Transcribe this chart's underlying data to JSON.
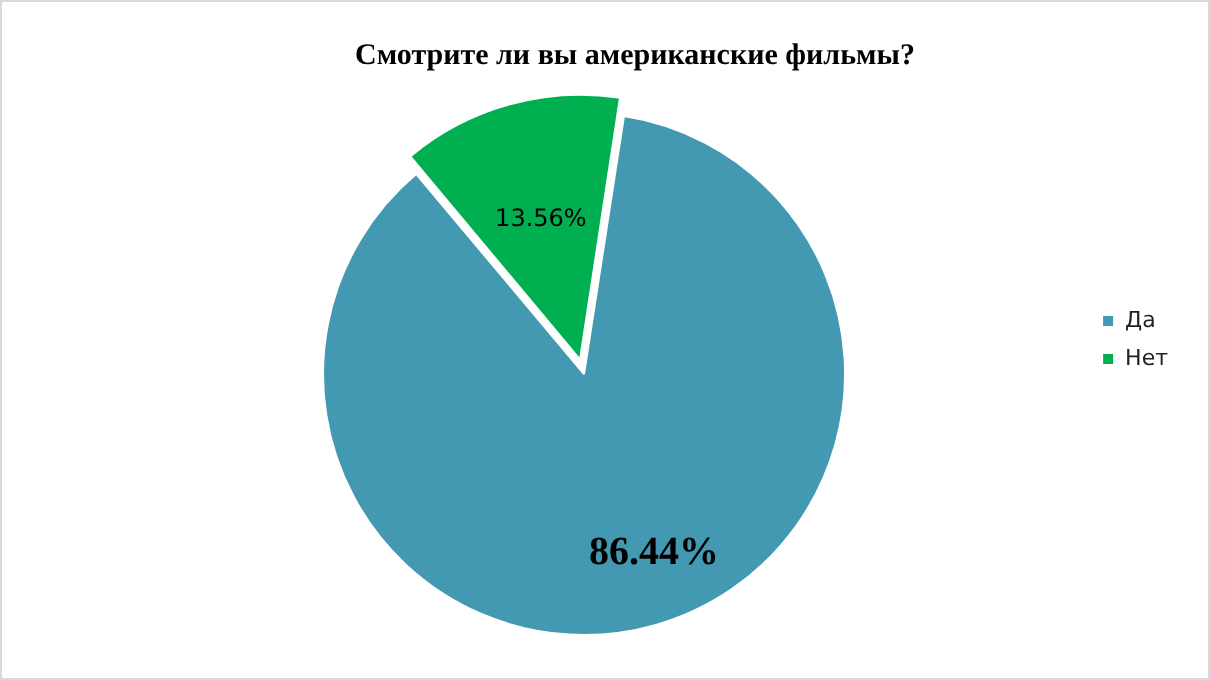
{
  "chart_data": {
    "type": "pie",
    "title": "Смотрите ли вы американские фильмы?",
    "categories": [
      "Да",
      "Нет"
    ],
    "values": [
      86.44,
      13.56
    ],
    "colors": [
      "#4399b1",
      "#00b050"
    ],
    "value_labels": [
      "86.44%",
      "13.56%"
    ],
    "legend": "right"
  }
}
